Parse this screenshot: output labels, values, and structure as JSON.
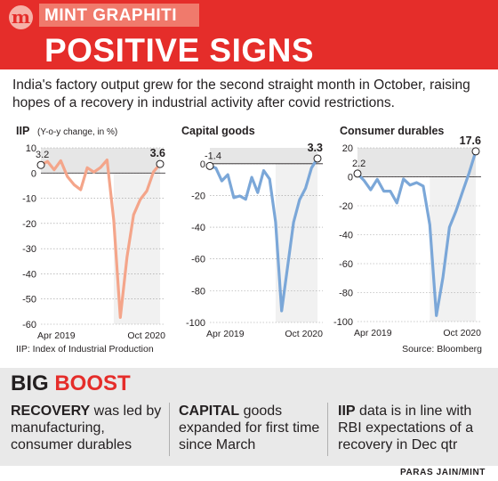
{
  "brand": "MINT GRAPHITI",
  "logo_letter": "m",
  "headline": "POSITIVE SIGNS",
  "intro": "India's factory output grew for the second straight month in October, raising hopes of a recovery in industrial activity after covid restrictions.",
  "footnote_left": "IIP: Index of Industrial Production",
  "footnote_right": "Source: Bloomberg",
  "boost": {
    "title_part1": "BIG",
    "title_part2": "BOOST",
    "items": [
      {
        "bold": "RECOVERY",
        "text": " was led by manufacturing, consumer durables"
      },
      {
        "bold": "CAPITAL",
        "text": " goods expanded for first time since March"
      },
      {
        "bold": "IIP",
        "text": " data is in line with RBI expectations of a recovery in Dec qtr"
      }
    ]
  },
  "credit": "PARAS JAIN/MINT",
  "colors": {
    "brand_red": "#e52d2a",
    "iip_line": "#f4a58a",
    "capital_line": "#7ba7d8",
    "durables_line": "#7ba7d8",
    "shade": "#e6e6e6"
  },
  "chart_data": [
    {
      "type": "line",
      "title": "IIP",
      "subtitle": "(Y-o-y change, in %)",
      "x": [
        "Apr 2019",
        "May 2019",
        "Jun 2019",
        "Jul 2019",
        "Aug 2019",
        "Sep 2019",
        "Oct 2019",
        "Nov 2019",
        "Dec 2019",
        "Jan 2020",
        "Feb 2020",
        "Mar 2020",
        "Apr 2020",
        "May 2020",
        "Jun 2020",
        "Jul 2020",
        "Aug 2020",
        "Sep 2020",
        "Oct 2020"
      ],
      "values": [
        3.2,
        4.6,
        1.3,
        4.9,
        -1.4,
        -4.6,
        -6.6,
        2.1,
        0.4,
        2.2,
        5.2,
        -18.7,
        -57.3,
        -33.4,
        -16.6,
        -10.5,
        -7.1,
        0.5,
        3.6
      ],
      "labeled_points": [
        {
          "x": "Apr 2019",
          "label": "3.2"
        },
        {
          "x": "Oct 2020",
          "label": "3.6"
        }
      ],
      "x_tick_labels": [
        "Apr 2019",
        "Oct 2020"
      ],
      "y_ticks": [
        10,
        0,
        -10,
        -20,
        -30,
        -40,
        -50,
        -60
      ],
      "ylim": [
        -60,
        10
      ]
    },
    {
      "type": "line",
      "title": "Capital goods",
      "x": [
        "Apr 2019",
        "May 2019",
        "Jun 2019",
        "Jul 2019",
        "Aug 2019",
        "Sep 2019",
        "Oct 2019",
        "Nov 2019",
        "Dec 2019",
        "Jan 2020",
        "Feb 2020",
        "Mar 2020",
        "Apr 2020",
        "May 2020",
        "Jun 2020",
        "Jul 2020",
        "Aug 2020",
        "Sep 2020",
        "Oct 2020"
      ],
      "values": [
        -1.4,
        -2.7,
        -10.8,
        -6.9,
        -21.4,
        -20.3,
        -22.4,
        -8.6,
        -18.2,
        -4.3,
        -9.7,
        -36.7,
        -92.7,
        -64.9,
        -36.9,
        -22.8,
        -15.4,
        -2.6,
        3.3
      ],
      "labeled_points": [
        {
          "x": "Apr 2019",
          "label": "-1.4"
        },
        {
          "x": "Oct 2020",
          "label": "3.3"
        }
      ],
      "x_tick_labels": [
        "Apr 2019",
        "Oct 2020"
      ],
      "y_ticks": [
        0,
        -20,
        -40,
        -60,
        -80,
        -100
      ],
      "ylim": [
        -100,
        10
      ]
    },
    {
      "type": "line",
      "title": "Consumer durables",
      "x": [
        "Apr 2019",
        "May 2019",
        "Jun 2019",
        "Jul 2019",
        "Aug 2019",
        "Sep 2019",
        "Oct 2019",
        "Nov 2019",
        "Dec 2019",
        "Jan 2020",
        "Feb 2020",
        "Mar 2020",
        "Apr 2020",
        "May 2020",
        "Jun 2020",
        "Jul 2020",
        "Aug 2020",
        "Sep 2020",
        "Oct 2020"
      ],
      "values": [
        2.2,
        -2.6,
        -9.0,
        -1.7,
        -9.9,
        -9.9,
        -18.0,
        -1.5,
        -5.7,
        -4.0,
        -6.4,
        -33.1,
        -95.9,
        -69.4,
        -34.8,
        -23.6,
        -10.2,
        2.8,
        17.6
      ],
      "labeled_points": [
        {
          "x": "Apr 2019",
          "label": "2.2"
        },
        {
          "x": "Oct 2020",
          "label": "17.6"
        }
      ],
      "x_tick_labels": [
        "Apr 2019",
        "Oct 2020"
      ],
      "y_ticks": [
        20,
        0,
        -20,
        -40,
        -60,
        -80,
        -100
      ],
      "ylim": [
        -100,
        20
      ]
    }
  ]
}
